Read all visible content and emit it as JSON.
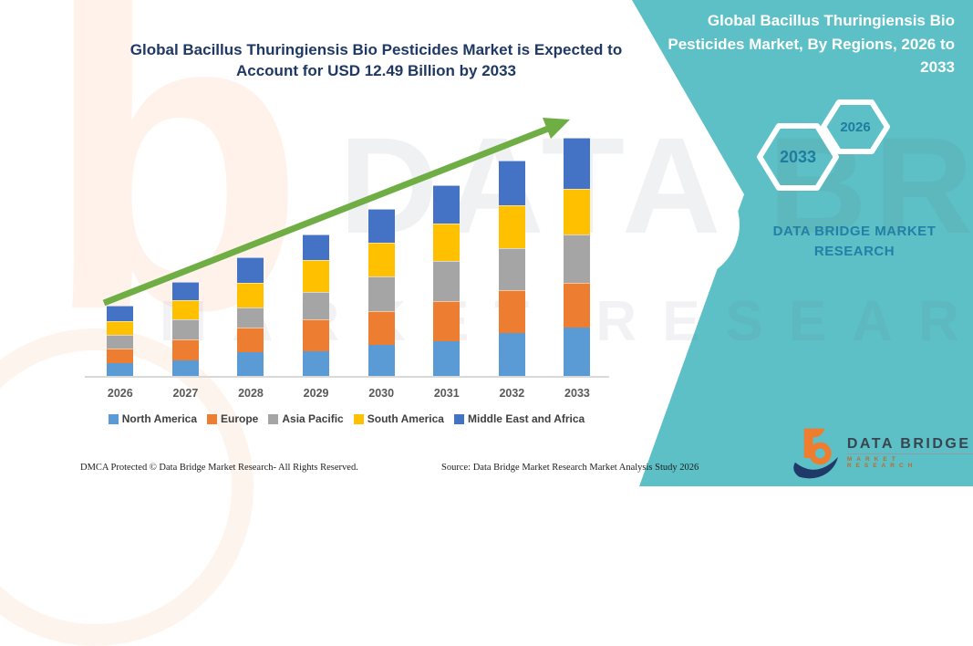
{
  "title": "Global Bacillus Thuringiensis Bio Pesticides Market is Expected to Account for USD 12.49 Billion by 2033",
  "side_panel": {
    "heading": "Global Bacillus Thuringiensis Bio Pesticides Market, By Regions, 2026 to 2033",
    "hexagon_labels": {
      "large": "2033",
      "small": "2026"
    },
    "brand_text": "DATA BRIDGE MARKET RESEARCH",
    "panel_color": "#5CC0C6",
    "hexagon_text_color": "#1E7C9E"
  },
  "chart_data": {
    "type": "bar",
    "stacked": true,
    "unit": "USD Billion",
    "categories": [
      "2026",
      "2027",
      "2028",
      "2029",
      "2030",
      "2031",
      "2032",
      "2033"
    ],
    "series": [
      {
        "name": "North America",
        "color": "#5B9BD5",
        "values": [
          0.74,
          0.88,
          1.28,
          1.35,
          1.68,
          1.87,
          2.27,
          2.59
        ]
      },
      {
        "name": "Europe",
        "color": "#ED7D31",
        "values": [
          0.75,
          1.06,
          1.3,
          1.66,
          1.77,
          2.06,
          2.25,
          2.34
        ]
      },
      {
        "name": "Asia Pacific",
        "color": "#A5A5A5",
        "values": [
          0.71,
          1.05,
          1.03,
          1.44,
          1.79,
          2.11,
          2.19,
          2.52
        ]
      },
      {
        "name": "South America",
        "color": "#FFC000",
        "values": [
          0.71,
          1.0,
          1.3,
          1.65,
          1.77,
          1.94,
          2.25,
          2.38
        ]
      },
      {
        "name": "Middle East and Africa",
        "color": "#4472C4",
        "values": [
          0.79,
          0.98,
          1.32,
          1.35,
          1.75,
          2.01,
          2.3,
          2.66
        ]
      }
    ],
    "totals": [
      3.7,
      4.97,
      6.23,
      7.45,
      8.76,
      9.99,
      11.26,
      12.49
    ],
    "highlight_total_2033": "USD 12.49 Billion",
    "trend_arrow": {
      "present": true,
      "color": "#6FAE44"
    },
    "legend_position": "bottom",
    "gridlines": false,
    "y_axis_visible": false,
    "baseline_color": "#D9D9D9"
  },
  "footer": {
    "left": "DMCA Protected © Data Bridge Market Research-  All Rights Reserved.",
    "right": "Source: Data Bridge Market Research  Market Analysis Study 2026"
  },
  "logo": {
    "name": "DATA BRIDGE",
    "subtitle": "MARKET RESEARCH",
    "orange": "#EE7D2F",
    "navy": "#1F3A68"
  },
  "watermarks": {
    "glyph": "b",
    "row1": "DATA BRIDGE",
    "row2": "MARKET RESEARCH"
  }
}
